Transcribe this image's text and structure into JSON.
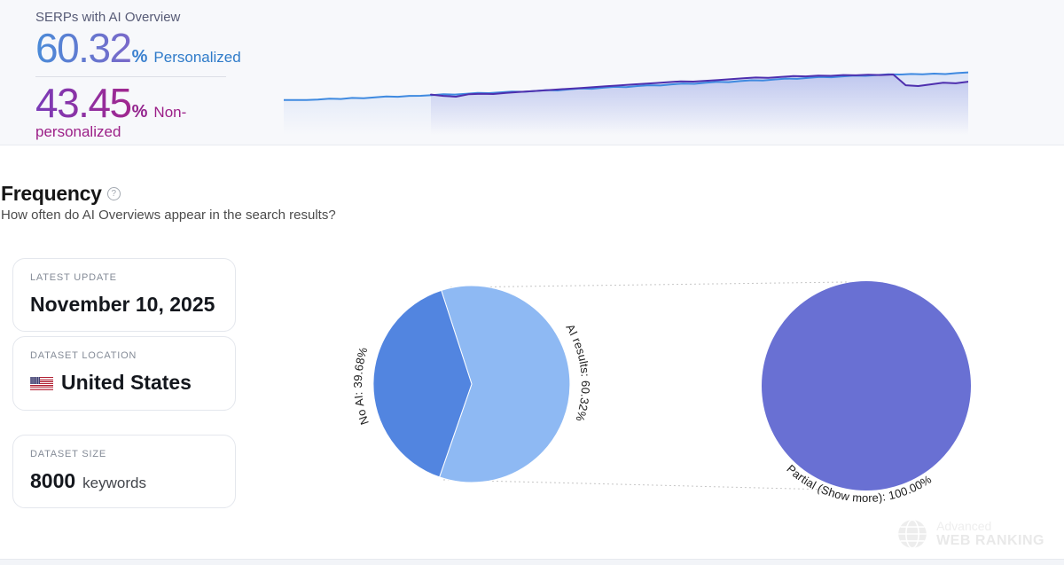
{
  "summary_panel": {
    "title": "SERPs with AI Overview",
    "metrics": [
      {
        "value": "60.32",
        "unit": "%",
        "label": "Personalized"
      },
      {
        "value": "43.45",
        "unit": "%",
        "label": "Non-personalized"
      }
    ]
  },
  "frequency_section": {
    "title": "Frequency",
    "help_glyph": "?",
    "subtitle": "How often do AI Overviews appear in the search results?",
    "cards": [
      {
        "label": "LATEST UPDATE",
        "value": "November 10, 2025"
      },
      {
        "label": "DATASET LOCATION",
        "value": "United States",
        "icon": "us-flag-icon"
      },
      {
        "label": "DATASET SIZE",
        "value": "8000",
        "value_suffix": "keywords"
      }
    ]
  },
  "watermark": {
    "icon": "globe-icon",
    "line1": "Advanced",
    "line2": "WEB RANKING"
  },
  "colors": {
    "panel_bg": "#f7f8fb",
    "personalized_blue": "#3f8ae0",
    "nonpersonalized_purple": "#4e2fae",
    "blue_text": "#2f7bc9",
    "magenta_text": "#9c2088",
    "pie_light_blue": "#8eb9f3",
    "pie_dark_blue": "#5285e0",
    "pie_indigo": "#6970d3"
  },
  "chart_data": [
    {
      "id": "serp-trend-sparkline",
      "type": "area",
      "title": "SERPs with AI Overview over time",
      "xlabel": "",
      "ylabel": "",
      "ylim": [
        0,
        100
      ],
      "grid": false,
      "axes_visible": false,
      "legend_position": "none",
      "series": [
        {
          "name": "Personalized",
          "color": "#3f8ae0",
          "end_value": 60.32,
          "x_start_fraction": 0,
          "values": [
            10,
            10,
            10.2,
            11,
            12.5,
            12,
            13.8,
            13.2,
            15,
            16.5,
            16,
            17.5,
            17.8,
            19,
            20.5,
            20,
            21.5,
            23,
            22.5,
            24,
            25.5,
            25,
            26.5,
            28,
            27.5,
            29.5,
            31,
            30.5,
            32.5,
            34,
            33.5,
            35.5,
            37,
            36.5,
            38.5,
            40,
            39.5,
            41.5,
            43,
            42.5,
            44.5,
            46,
            45.5,
            47.5,
            49,
            48.5,
            50.5,
            52,
            51.5,
            53,
            54.5,
            54,
            55.5,
            57,
            56.5,
            57.5,
            56.8,
            58,
            57.2,
            59,
            60.32
          ]
        },
        {
          "name": "Non-personalized",
          "color": "#4e2fae",
          "end_value": 43.45,
          "x_start_fraction": 0.215,
          "values": [
            20,
            17.5,
            16.2,
            20.5,
            21.5,
            21,
            23,
            24.5,
            26,
            27.5,
            29,
            30.5,
            32,
            33.5,
            35,
            36.5,
            38,
            39.5,
            41,
            42.5,
            44,
            43.5,
            45,
            46.5,
            48,
            49.5,
            51,
            50.5,
            52,
            53.5,
            53,
            54.5,
            54,
            55.5,
            55,
            56,
            55.5,
            56.5,
            37,
            35.5,
            38.5,
            41.5,
            40.5,
            43.45
          ]
        }
      ]
    },
    {
      "id": "frequency-pie",
      "type": "pie",
      "title": "Frequency of AI Overviews",
      "start_angle": 108,
      "slices": [
        {
          "name": "AI results",
          "value": 60.32,
          "color": "#8eb9f3",
          "label": "AI results: 60.32%"
        },
        {
          "name": "No AI",
          "value": 39.68,
          "color": "#5285e0",
          "label": "No AI: 39.68%"
        }
      ]
    },
    {
      "id": "ai-results-breakdown-pie",
      "type": "pie",
      "title": "AI results breakdown",
      "start_angle": 90,
      "slices": [
        {
          "name": "Partial (Show more)",
          "value": 100.0,
          "color": "#6970d3",
          "label": "Partial (Show more): 100.00%"
        }
      ]
    }
  ]
}
